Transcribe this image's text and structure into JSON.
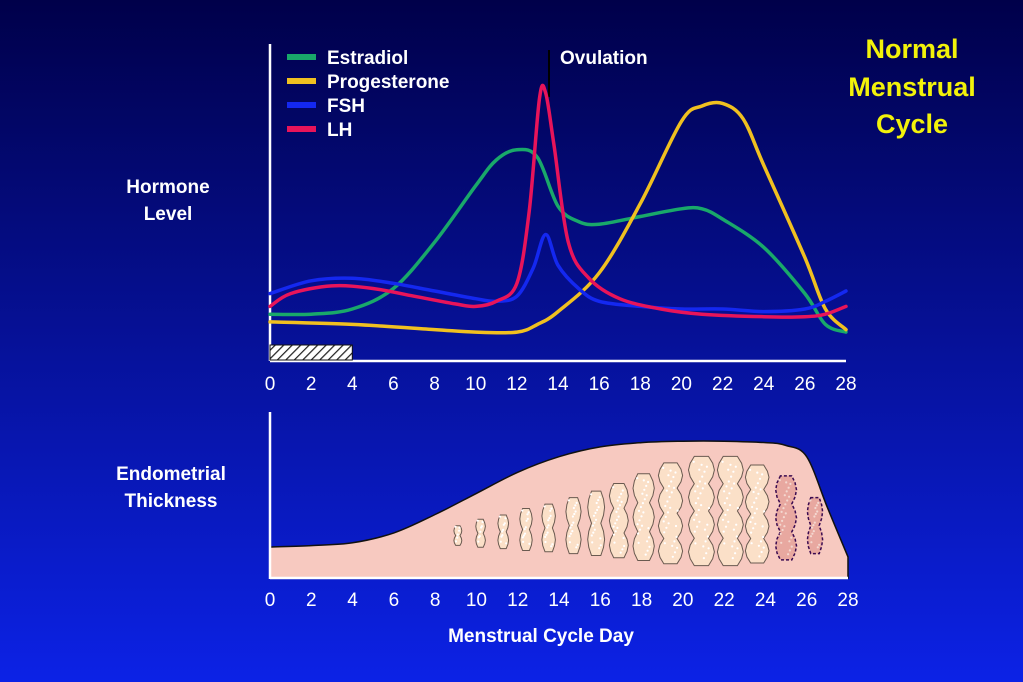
{
  "title": [
    "Normal",
    "Menstrual",
    "Cycle"
  ],
  "colors": {
    "background_top": "#00004a",
    "background_bottom": "#0c22e6",
    "title": "#f2f20a",
    "text": "#ffffff",
    "axis": "#ffffff",
    "endometrium_fill": "#f7c9c0",
    "gland_fill": "#fbe0c8"
  },
  "chart_data": [
    {
      "type": "line",
      "name": "hormone-levels",
      "ylabel": [
        "Hormone",
        "Level"
      ],
      "xlim": [
        0,
        28
      ],
      "x_ticks": [
        "0",
        "2",
        "4",
        "6",
        "8",
        "10",
        "12",
        "14",
        "16",
        "18",
        "20",
        "22",
        "24",
        "26",
        "28"
      ],
      "grid": false,
      "legend_position": "top-left",
      "menses_bar": {
        "x_start": 0,
        "x_end": 4
      },
      "annotation": {
        "label": "Ovulation",
        "x": 14
      },
      "series": [
        {
          "name": "Estradiol",
          "color": "#19a86a",
          "points": [
            [
              0,
              0.12
            ],
            [
              2,
              0.12
            ],
            [
              4,
              0.14
            ],
            [
              6,
              0.22
            ],
            [
              8,
              0.4
            ],
            [
              10,
              0.62
            ],
            [
              11,
              0.72
            ],
            [
              12,
              0.76
            ],
            [
              13,
              0.73
            ],
            [
              14,
              0.54
            ],
            [
              15,
              0.48
            ],
            [
              16,
              0.47
            ],
            [
              18,
              0.5
            ],
            [
              20,
              0.53
            ],
            [
              21,
              0.53
            ],
            [
              22,
              0.49
            ],
            [
              24,
              0.38
            ],
            [
              26,
              0.2
            ],
            [
              27,
              0.08
            ],
            [
              28,
              0.05
            ]
          ]
        },
        {
          "name": "Progesterone",
          "color": "#f0c020",
          "points": [
            [
              0,
              0.09
            ],
            [
              4,
              0.08
            ],
            [
              8,
              0.06
            ],
            [
              10,
              0.05
            ],
            [
              12,
              0.05
            ],
            [
              13,
              0.08
            ],
            [
              14,
              0.13
            ],
            [
              16,
              0.28
            ],
            [
              18,
              0.55
            ],
            [
              20,
              0.87
            ],
            [
              21,
              0.93
            ],
            [
              22,
              0.94
            ],
            [
              23,
              0.88
            ],
            [
              24,
              0.7
            ],
            [
              26,
              0.34
            ],
            [
              27,
              0.14
            ],
            [
              28,
              0.06
            ]
          ]
        },
        {
          "name": "FSH",
          "color": "#1428f0",
          "points": [
            [
              0,
              0.2
            ],
            [
              2,
              0.25
            ],
            [
              4,
              0.26
            ],
            [
              6,
              0.24
            ],
            [
              8,
              0.21
            ],
            [
              10,
              0.18
            ],
            [
              11,
              0.17
            ],
            [
              12,
              0.19
            ],
            [
              12.8,
              0.3
            ],
            [
              13.4,
              0.43
            ],
            [
              14,
              0.31
            ],
            [
              15,
              0.22
            ],
            [
              16,
              0.17
            ],
            [
              18,
              0.15
            ],
            [
              20,
              0.14
            ],
            [
              22,
              0.14
            ],
            [
              24,
              0.13
            ],
            [
              26,
              0.14
            ],
            [
              27,
              0.17
            ],
            [
              28,
              0.21
            ]
          ]
        },
        {
          "name": "LH",
          "color": "#e8145a",
          "points": [
            [
              0,
              0.15
            ],
            [
              1,
              0.2
            ],
            [
              3,
              0.23
            ],
            [
              5,
              0.22
            ],
            [
              7,
              0.19
            ],
            [
              9,
              0.16
            ],
            [
              10,
              0.15
            ],
            [
              11,
              0.17
            ],
            [
              12,
              0.24
            ],
            [
              12.6,
              0.52
            ],
            [
              13.1,
              0.96
            ],
            [
              13.4,
              0.98
            ],
            [
              13.8,
              0.78
            ],
            [
              14.5,
              0.4
            ],
            [
              15.5,
              0.26
            ],
            [
              17,
              0.18
            ],
            [
              19,
              0.14
            ],
            [
              21,
              0.12
            ],
            [
              24,
              0.11
            ],
            [
              26,
              0.11
            ],
            [
              27,
              0.12
            ],
            [
              28,
              0.15
            ]
          ]
        }
      ]
    },
    {
      "type": "area",
      "name": "endometrial-thickness",
      "ylabel": [
        "Endometrial",
        "Thickness"
      ],
      "xlabel": "Menstrual Cycle Day",
      "xlim": [
        0,
        28
      ],
      "x_ticks": [
        "0",
        "2",
        "4",
        "6",
        "8",
        "10",
        "12",
        "14",
        "16",
        "18",
        "20",
        "22",
        "24",
        "26",
        "28"
      ],
      "grid": false,
      "points": [
        [
          0,
          0.22
        ],
        [
          2,
          0.23
        ],
        [
          4,
          0.25
        ],
        [
          6,
          0.32
        ],
        [
          8,
          0.45
        ],
        [
          10,
          0.6
        ],
        [
          12,
          0.75
        ],
        [
          14,
          0.86
        ],
        [
          16,
          0.93
        ],
        [
          18,
          0.96
        ],
        [
          20,
          0.97
        ],
        [
          22,
          0.97
        ],
        [
          24,
          0.96
        ],
        [
          25,
          0.94
        ],
        [
          26,
          0.86
        ],
        [
          27,
          0.5
        ],
        [
          28,
          0.15
        ]
      ],
      "glands": [
        {
          "x": 9.1,
          "size": 0.14,
          "state": "proliferative"
        },
        {
          "x": 10.2,
          "size": 0.2,
          "state": "proliferative"
        },
        {
          "x": 11.3,
          "size": 0.24,
          "state": "proliferative"
        },
        {
          "x": 12.4,
          "size": 0.3,
          "state": "proliferative"
        },
        {
          "x": 13.5,
          "size": 0.34,
          "state": "proliferative"
        },
        {
          "x": 14.7,
          "size": 0.4,
          "state": "secretory"
        },
        {
          "x": 15.8,
          "size": 0.46,
          "state": "secretory"
        },
        {
          "x": 16.9,
          "size": 0.53,
          "state": "secretory"
        },
        {
          "x": 18.1,
          "size": 0.62,
          "state": "secretory"
        },
        {
          "x": 19.4,
          "size": 0.72,
          "state": "secretory"
        },
        {
          "x": 20.9,
          "size": 0.78,
          "state": "secretory"
        },
        {
          "x": 22.3,
          "size": 0.78,
          "state": "secretory"
        },
        {
          "x": 23.6,
          "size": 0.7,
          "state": "secretory"
        },
        {
          "x": 25.0,
          "size": 0.6,
          "state": "breakdown"
        },
        {
          "x": 26.4,
          "size": 0.4,
          "state": "breakdown"
        }
      ]
    }
  ]
}
